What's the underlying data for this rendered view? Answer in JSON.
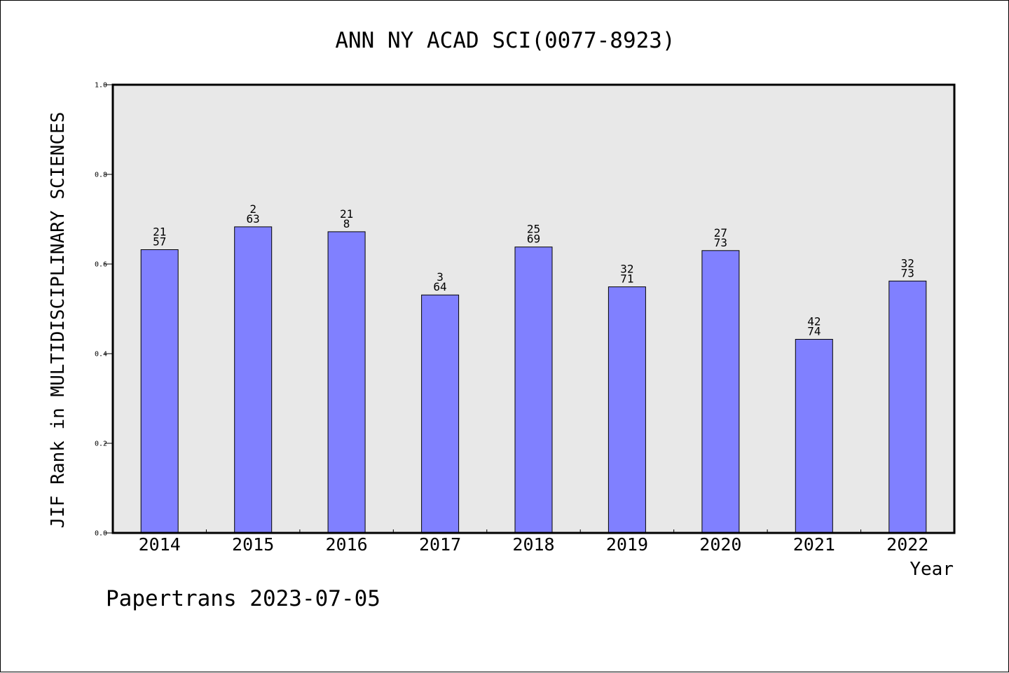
{
  "chart_data": {
    "type": "bar",
    "title": "ANN NY ACAD SCI(0077-8923)",
    "xlabel": "Year",
    "ylabel": "JIF Rank in MULTIDISCIPLINARY SCIENCES",
    "ylim": [
      0,
      1.0
    ],
    "yticks": [
      "0.0",
      "0.2",
      "0.4",
      "0.6",
      "0.8",
      "1.0"
    ],
    "categories": [
      "2014",
      "2015",
      "2016",
      "2017",
      "2018",
      "2019",
      "2020",
      "2021",
      "2022"
    ],
    "values": [
      0.632,
      0.683,
      0.672,
      0.531,
      0.638,
      0.549,
      0.63,
      0.432,
      0.562
    ],
    "bar_labels": [
      {
        "top": "21",
        "bottom": "57"
      },
      {
        "top": "2",
        "bottom": "63"
      },
      {
        "top": "21",
        "bottom": "8"
      },
      {
        "top": "3",
        "bottom": "64"
      },
      {
        "top": "25",
        "bottom": "69"
      },
      {
        "top": "32",
        "bottom": "71"
      },
      {
        "top": "27",
        "bottom": "73"
      },
      {
        "top": "42",
        "bottom": "74"
      },
      {
        "top": "32",
        "bottom": "73"
      }
    ],
    "grid": false,
    "bar_color": "#8080ff",
    "plot_background": "#e8e8e8"
  },
  "footer": {
    "text": "Papertrans 2023-07-05"
  }
}
